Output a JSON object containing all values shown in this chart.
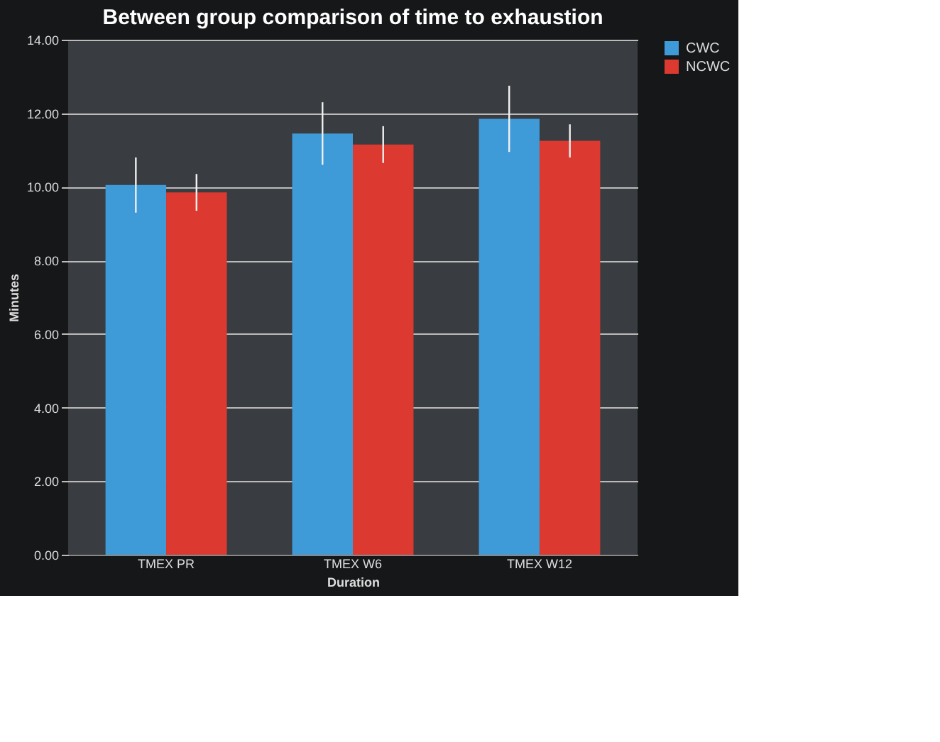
{
  "chart_data": {
    "type": "bar",
    "title": "Between group  comparison of time to exhaustion",
    "xlabel": "Duration",
    "ylabel": "Minutes",
    "categories": [
      "TMEX PR",
      "TMEX W6",
      "TMEX W12"
    ],
    "series": [
      {
        "name": "CWC",
        "color": "#3f9ad8",
        "values": [
          10.05,
          11.45,
          11.85
        ],
        "errors": [
          0.75,
          0.85,
          0.9
        ]
      },
      {
        "name": "NCWC",
        "color": "#dc3a30",
        "values": [
          9.85,
          11.15,
          11.25
        ],
        "errors": [
          0.5,
          0.5,
          0.45
        ]
      }
    ],
    "ylim": [
      0,
      14
    ],
    "yticks": [
      {
        "value": 0,
        "label": "0.00"
      },
      {
        "value": 2,
        "label": "2.00"
      },
      {
        "value": 4,
        "label": "4.00"
      },
      {
        "value": 6,
        "label": "6.00"
      },
      {
        "value": 8,
        "label": "8.00"
      },
      {
        "value": 10,
        "label": "10.00"
      },
      {
        "value": 12,
        "label": "12.00"
      },
      {
        "value": 14,
        "label": "14.00"
      }
    ],
    "grid": "y",
    "legend": "right"
  }
}
